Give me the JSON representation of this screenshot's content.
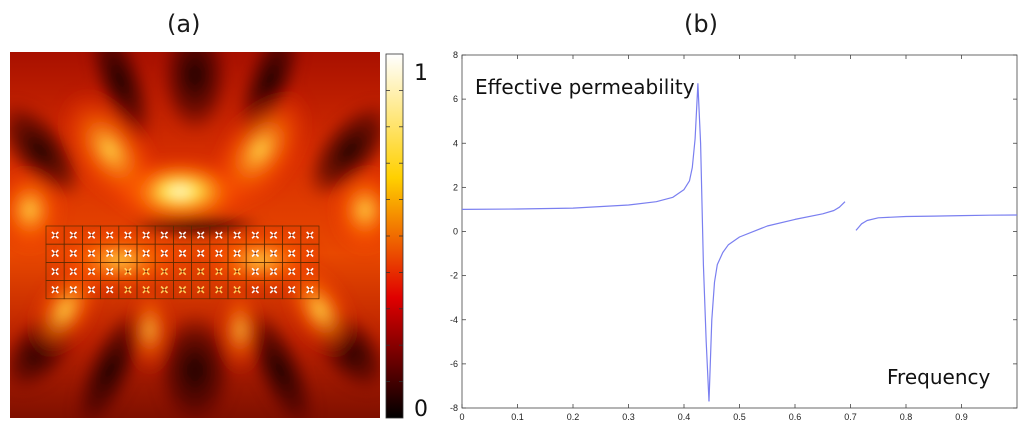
{
  "panels": {
    "a_label": "(a)",
    "b_label": "(b)"
  },
  "colorbar": {
    "max_label": "1",
    "min_label": "0",
    "range": [
      0,
      1
    ],
    "colormap": "hot"
  },
  "chart_data": [
    {
      "type": "heatmap",
      "panel": "(a)",
      "title": "",
      "colormap": "hot",
      "value_range": [
        0,
        1
      ],
      "colorbar_ticks": [
        "0",
        "1"
      ],
      "description_of_cells": "field intensity map; 4 rows x 15 columns array of unit cells",
      "array_rows": 4,
      "array_cols": 15
    },
    {
      "type": "line",
      "panel": "(b)",
      "title": "",
      "annotations": {
        "ylabel_text": "Effective permeability",
        "xlabel_text": "Frequency"
      },
      "xlim": [
        0,
        1
      ],
      "ylim": [
        -8,
        8
      ],
      "xticks": [
        "0",
        "0.1",
        "0.2",
        "0.3",
        "0.4",
        "0.5",
        "0.6",
        "0.7",
        "0.8",
        "0.9"
      ],
      "yticks": [
        "-8",
        "-6",
        "-4",
        "-2",
        "0",
        "2",
        "4",
        "6",
        "8"
      ],
      "line_color": "#7a7ff0",
      "series": [
        {
          "segment": 1,
          "x": [
            0.0,
            0.1,
            0.2,
            0.3,
            0.35,
            0.38,
            0.4,
            0.41,
            0.415,
            0.42,
            0.425,
            0.43,
            0.435,
            0.44,
            0.445
          ],
          "y": [
            1.0,
            1.02,
            1.06,
            1.2,
            1.35,
            1.55,
            1.9,
            2.3,
            2.9,
            4.2,
            6.7,
            4.0,
            -1.5,
            -5.0,
            -7.7
          ]
        },
        {
          "segment": 2,
          "x": [
            0.445,
            0.45,
            0.455,
            0.46,
            0.47,
            0.48,
            0.5,
            0.55,
            0.6,
            0.65,
            0.67,
            0.68,
            0.69
          ],
          "y": [
            -7.7,
            -4.0,
            -2.3,
            -1.5,
            -0.95,
            -0.6,
            -0.25,
            0.25,
            0.55,
            0.8,
            0.95,
            1.1,
            1.35
          ]
        },
        {
          "segment": 3,
          "x": [
            0.71,
            0.715,
            0.72,
            0.73,
            0.75,
            0.8,
            0.85,
            0.9,
            0.95,
            1.0
          ],
          "y": [
            0.05,
            0.2,
            0.35,
            0.5,
            0.62,
            0.68,
            0.7,
            0.72,
            0.74,
            0.75
          ]
        }
      ]
    }
  ]
}
